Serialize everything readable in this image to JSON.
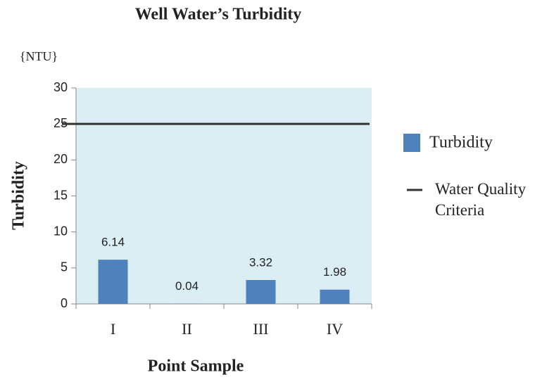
{
  "chart_data": {
    "type": "bar",
    "title": "Well Water’s Turbidity",
    "unit_label": "{NTU}",
    "y_label": "Turbidity",
    "x_label": "Point Sample",
    "categories": [
      "I",
      "II",
      "III",
      "IV"
    ],
    "series": [
      {
        "name": "Turbidity",
        "color": "#4f81bd",
        "values": [
          6.14,
          0.04,
          3.32,
          1.98
        ]
      }
    ],
    "reference_line": {
      "name": "Water Quality Criteria",
      "value": 25,
      "color": "#333333"
    },
    "ylim": [
      0,
      30
    ],
    "yticks": [
      0,
      5,
      10,
      15,
      20,
      25,
      30
    ],
    "legend": "right"
  }
}
